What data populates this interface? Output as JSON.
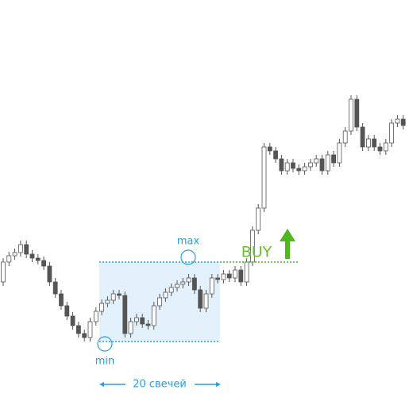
{
  "chart_data": {
    "type": "candlestick",
    "open": [
      160,
      185,
      193,
      197,
      207,
      195,
      190,
      187,
      180,
      160,
      145,
      130,
      117,
      105,
      95,
      90,
      110,
      123,
      133,
      137,
      145,
      143,
      95,
      110,
      115,
      107,
      105,
      130,
      140,
      147,
      153,
      157,
      160,
      165,
      150,
      127,
      145,
      165,
      163,
      170,
      165,
      175,
      160,
      185,
      225,
      253,
      330,
      325,
      315,
      300,
      310,
      303,
      300,
      305,
      310,
      315,
      300,
      320,
      310,
      335,
      350,
      390,
      355,
      330,
      340,
      330,
      325,
      335,
      360,
      365
    ],
    "high": [
      190,
      198,
      202,
      212,
      212,
      200,
      195,
      192,
      185,
      165,
      150,
      135,
      122,
      110,
      100,
      115,
      128,
      138,
      142,
      150,
      150,
      148,
      115,
      120,
      120,
      112,
      135,
      145,
      152,
      158,
      162,
      165,
      170,
      170,
      155,
      150,
      170,
      170,
      175,
      175,
      180,
      180,
      190,
      230,
      258,
      335,
      335,
      330,
      320,
      315,
      315,
      308,
      310,
      315,
      320,
      320,
      325,
      325,
      340,
      355,
      395,
      395,
      360,
      345,
      345,
      335,
      340,
      365,
      370,
      370
    ],
    "low": [
      155,
      180,
      188,
      192,
      190,
      185,
      182,
      175,
      155,
      140,
      125,
      112,
      100,
      90,
      85,
      85,
      105,
      118,
      128,
      132,
      138,
      90,
      90,
      105,
      102,
      100,
      100,
      125,
      135,
      142,
      148,
      152,
      155,
      145,
      122,
      122,
      140,
      158,
      158,
      160,
      160,
      155,
      155,
      180,
      220,
      248,
      320,
      310,
      295,
      295,
      298,
      295,
      295,
      300,
      305,
      295,
      295,
      305,
      305,
      330,
      345,
      350,
      325,
      325,
      325,
      320,
      320,
      330,
      355,
      352
    ],
    "close": [
      185,
      193,
      197,
      207,
      195,
      190,
      187,
      180,
      160,
      145,
      130,
      117,
      105,
      95,
      90,
      110,
      123,
      133,
      137,
      145,
      143,
      95,
      110,
      115,
      107,
      105,
      130,
      140,
      147,
      153,
      157,
      160,
      165,
      150,
      127,
      145,
      165,
      163,
      170,
      165,
      175,
      160,
      185,
      225,
      253,
      330,
      325,
      315,
      300,
      310,
      303,
      300,
      305,
      310,
      315,
      300,
      320,
      310,
      335,
      350,
      390,
      355,
      330,
      340,
      330,
      325,
      335,
      360,
      365,
      357
    ],
    "ylim": [
      0,
      515
    ],
    "levels": {
      "high": 185,
      "low": 85
    },
    "annotations": {
      "max": "max",
      "min": "min",
      "signal": "BUY",
      "period": "20 свечей"
    }
  }
}
